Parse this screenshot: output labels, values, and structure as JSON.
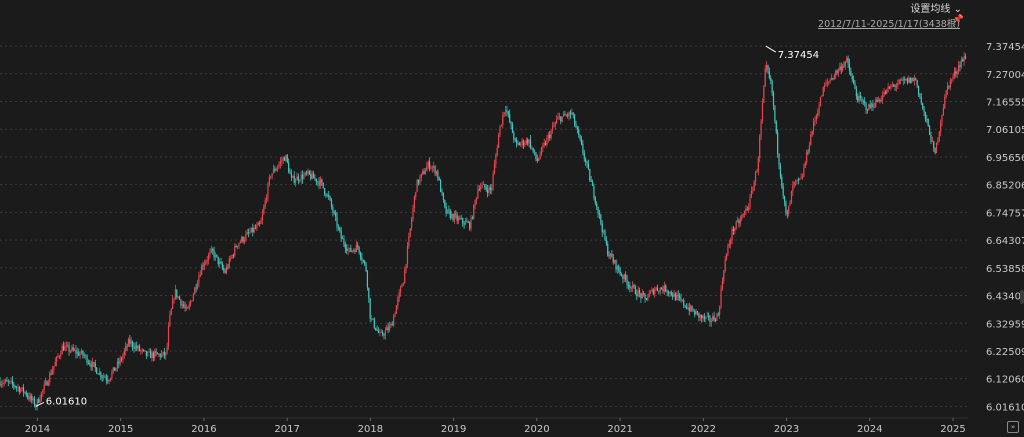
{
  "toolbar": {
    "ma_setting_label": "设置均线",
    "range_text": "2012/7/11-2025/1/17(3438根)",
    "pin_icon": "pin-icon",
    "scroll_right_icon": "double-chevron-right-icon"
  },
  "colors": {
    "background": "#1b1b1b",
    "up": "#e8474f",
    "down": "#41c9c1",
    "grid": "#3a3a3a",
    "axis_text": "#c8c8c8",
    "marker": "#ffffff"
  },
  "chart_data": {
    "type": "candlestick",
    "title": "",
    "xlabel": "",
    "ylabel": "",
    "grid": "horizontal dashed",
    "ylim": [
      5.995,
      7.405
    ],
    "xlim": [
      2013.55,
      2025.18
    ],
    "y_ticks": [
      "7.37454",
      "7.27004",
      "7.16555",
      "7.06105",
      "6.95656",
      "6.85206",
      "6.74757",
      "6.64307",
      "6.53858",
      "6.43408",
      "6.32959",
      "6.22509",
      "6.12060",
      "6.01610"
    ],
    "x_ticks": [
      "2014",
      "2015",
      "2016",
      "2017",
      "2018",
      "2019",
      "2020",
      "2021",
      "2022",
      "2023",
      "2024",
      "2025"
    ],
    "annotations": [
      {
        "label": "6.01610",
        "x": 2013.98,
        "y": 6.0161,
        "type": "low"
      },
      {
        "label": "7.37454",
        "x": 2022.75,
        "y": 7.37454,
        "type": "high"
      }
    ],
    "price_path": [
      [
        2013.55,
        6.11
      ],
      [
        2013.7,
        6.1
      ],
      [
        2013.85,
        6.07
      ],
      [
        2013.98,
        6.02
      ],
      [
        2014.1,
        6.1
      ],
      [
        2014.3,
        6.24
      ],
      [
        2014.55,
        6.21
      ],
      [
        2014.75,
        6.14
      ],
      [
        2014.85,
        6.12
      ],
      [
        2015.0,
        6.19
      ],
      [
        2015.1,
        6.26
      ],
      [
        2015.3,
        6.21
      ],
      [
        2015.55,
        6.21
      ],
      [
        2015.58,
        6.33
      ],
      [
        2015.65,
        6.45
      ],
      [
        2015.8,
        6.37
      ],
      [
        2015.98,
        6.55
      ],
      [
        2016.1,
        6.6
      ],
      [
        2016.25,
        6.52
      ],
      [
        2016.4,
        6.63
      ],
      [
        2016.55,
        6.67
      ],
      [
        2016.68,
        6.7
      ],
      [
        2016.8,
        6.89
      ],
      [
        2016.98,
        6.96
      ],
      [
        2017.05,
        6.87
      ],
      [
        2017.25,
        6.89
      ],
      [
        2017.4,
        6.86
      ],
      [
        2017.5,
        6.8
      ],
      [
        2017.65,
        6.65
      ],
      [
        2017.75,
        6.6
      ],
      [
        2017.85,
        6.62
      ],
      [
        2017.95,
        6.53
      ],
      [
        2018.0,
        6.35
      ],
      [
        2018.12,
        6.28
      ],
      [
        2018.25,
        6.32
      ],
      [
        2018.4,
        6.5
      ],
      [
        2018.55,
        6.85
      ],
      [
        2018.7,
        6.93
      ],
      [
        2018.8,
        6.9
      ],
      [
        2018.9,
        6.75
      ],
      [
        2019.05,
        6.72
      ],
      [
        2019.2,
        6.7
      ],
      [
        2019.3,
        6.85
      ],
      [
        2019.45,
        6.83
      ],
      [
        2019.55,
        7.06
      ],
      [
        2019.62,
        7.15
      ],
      [
        2019.75,
        7.0
      ],
      [
        2019.9,
        7.02
      ],
      [
        2020.0,
        6.94
      ],
      [
        2020.12,
        7.02
      ],
      [
        2020.25,
        7.1
      ],
      [
        2020.42,
        7.12
      ],
      [
        2020.55,
        6.98
      ],
      [
        2020.7,
        6.8
      ],
      [
        2020.85,
        6.6
      ],
      [
        2021.0,
        6.52
      ],
      [
        2021.15,
        6.46
      ],
      [
        2021.3,
        6.42
      ],
      [
        2021.42,
        6.46
      ],
      [
        2021.55,
        6.46
      ],
      [
        2021.7,
        6.42
      ],
      [
        2021.85,
        6.38
      ],
      [
        2021.98,
        6.35
      ],
      [
        2022.08,
        6.34
      ],
      [
        2022.18,
        6.36
      ],
      [
        2022.25,
        6.55
      ],
      [
        2022.35,
        6.68
      ],
      [
        2022.45,
        6.72
      ],
      [
        2022.55,
        6.78
      ],
      [
        2022.65,
        6.92
      ],
      [
        2022.75,
        7.3
      ],
      [
        2022.82,
        7.22
      ],
      [
        2022.9,
        6.96
      ],
      [
        2023.0,
        6.72
      ],
      [
        2023.08,
        6.85
      ],
      [
        2023.18,
        6.87
      ],
      [
        2023.3,
        7.05
      ],
      [
        2023.45,
        7.22
      ],
      [
        2023.58,
        7.27
      ],
      [
        2023.72,
        7.32
      ],
      [
        2023.85,
        7.18
      ],
      [
        2023.98,
        7.14
      ],
      [
        2024.1,
        7.17
      ],
      [
        2024.25,
        7.22
      ],
      [
        2024.4,
        7.24
      ],
      [
        2024.55,
        7.25
      ],
      [
        2024.65,
        7.12
      ],
      [
        2024.72,
        7.05
      ],
      [
        2024.78,
        6.96
      ],
      [
        2024.86,
        7.11
      ],
      [
        2024.93,
        7.22
      ],
      [
        2025.02,
        7.27
      ],
      [
        2025.1,
        7.32
      ],
      [
        2025.15,
        7.33
      ]
    ]
  }
}
